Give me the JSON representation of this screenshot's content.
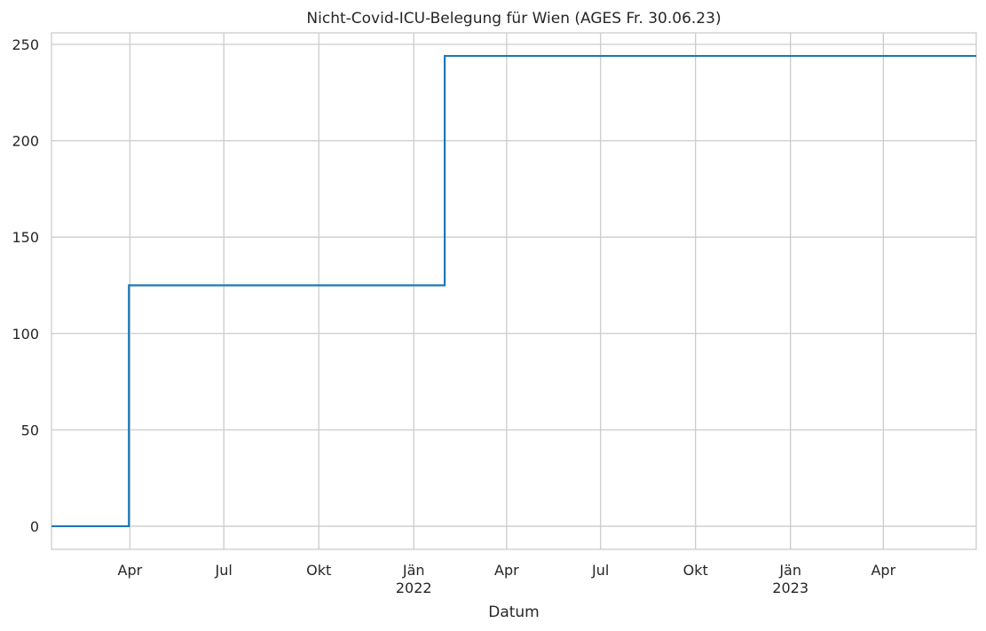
{
  "chart_data": {
    "type": "line",
    "drawstyle": "steps-post",
    "title": "Nicht-Covid-ICU-Belegung für Wien (AGES Fr. 30.06.23)",
    "xlabel": "Datum",
    "ylabel": "",
    "x_type": "date",
    "xlim": [
      "2021-01-15",
      "2023-06-30"
    ],
    "ylim": [
      -12,
      256
    ],
    "y_ticks": [
      0,
      50,
      100,
      150,
      200,
      250
    ],
    "x_ticks": [
      {
        "date": "2021-04-01",
        "label": "Apr",
        "year": ""
      },
      {
        "date": "2021-07-01",
        "label": "Jul",
        "year": ""
      },
      {
        "date": "2021-10-01",
        "label": "Okt",
        "year": ""
      },
      {
        "date": "2022-01-01",
        "label": "Jän",
        "year": "2022"
      },
      {
        "date": "2022-04-01",
        "label": "Apr",
        "year": ""
      },
      {
        "date": "2022-07-01",
        "label": "Jul",
        "year": ""
      },
      {
        "date": "2022-10-01",
        "label": "Okt",
        "year": ""
      },
      {
        "date": "2023-01-01",
        "label": "Jän",
        "year": "2023"
      },
      {
        "date": "2023-04-01",
        "label": "Apr",
        "year": ""
      }
    ],
    "series": [
      {
        "color": "#1f77b4",
        "points": [
          {
            "x": "2021-01-15",
            "y": 0
          },
          {
            "x": "2021-03-31",
            "y": 125
          },
          {
            "x": "2022-01-31",
            "y": 244
          },
          {
            "x": "2023-06-30",
            "y": 244
          }
        ]
      }
    ],
    "grid": true,
    "legend": "none"
  }
}
